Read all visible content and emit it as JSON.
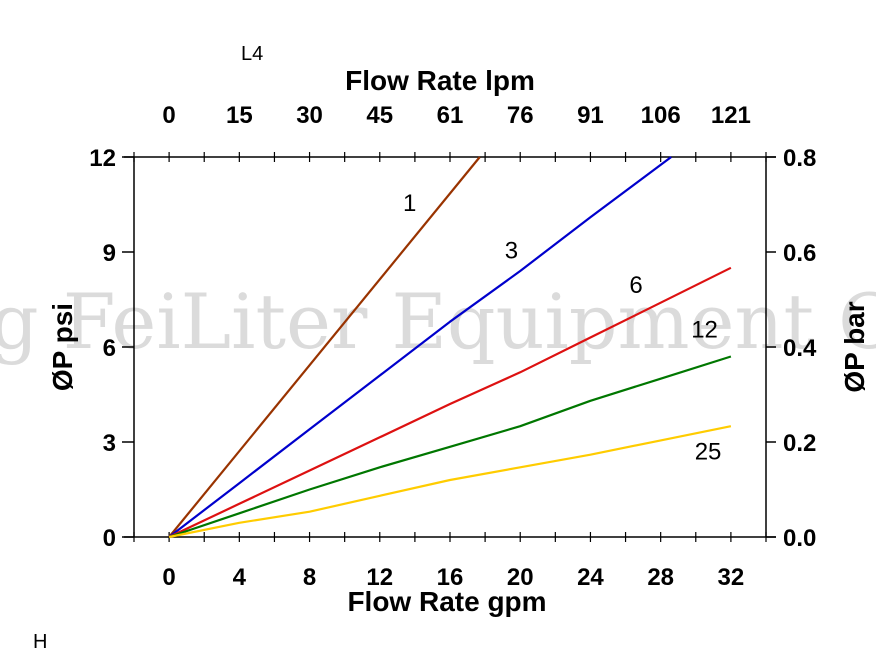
{
  "corner_labels": {
    "top": "L4",
    "bottom": "H"
  },
  "watermark": "g FeiLiter Equipment Co.",
  "chart_data": {
    "type": "line",
    "title": "",
    "xlabel": "Flow Rate gpm",
    "ylabel": "ØP psi",
    "xlabel_top": "Flow Rate lpm",
    "ylabel_right": "ØP bar",
    "xlim": [
      -2,
      34
    ],
    "ylim": [
      0,
      12
    ],
    "x_ticks": [
      "0",
      "4",
      "8",
      "12",
      "16",
      "20",
      "24",
      "28",
      "32"
    ],
    "x_top_ticks": [
      "0",
      "15",
      "30",
      "45",
      "61",
      "76",
      "91",
      "106",
      "121"
    ],
    "y_ticks": [
      "0",
      "3",
      "6",
      "9",
      "12"
    ],
    "y_right_ticks": [
      "0.0",
      "0.2",
      "0.4",
      "0.6",
      "0.8"
    ],
    "grid": false,
    "series": [
      {
        "name": "1",
        "color": "#993300",
        "x": [
          0,
          17.7
        ],
        "y": [
          0,
          12
        ]
      },
      {
        "name": "3",
        "color": "#0000cc",
        "x": [
          0,
          4,
          8,
          12,
          16,
          20,
          24,
          28.6
        ],
        "y": [
          0,
          1.7,
          3.4,
          5.1,
          6.8,
          8.4,
          10.1,
          12
        ]
      },
      {
        "name": "6",
        "color": "#dd1111",
        "x": [
          0,
          4,
          8,
          12,
          16,
          20,
          24,
          28,
          32
        ],
        "y": [
          0,
          1.05,
          2.1,
          3.15,
          4.2,
          5.2,
          6.3,
          7.4,
          8.5
        ]
      },
      {
        "name": "12",
        "color": "#007700",
        "x": [
          0,
          4,
          8,
          12,
          16,
          20,
          24,
          28,
          32
        ],
        "y": [
          0,
          0.75,
          1.5,
          2.2,
          2.85,
          3.5,
          4.3,
          5.0,
          5.7
        ]
      },
      {
        "name": "25",
        "color": "#ffcc00",
        "x": [
          0,
          4,
          8,
          12,
          16,
          20,
          24,
          28,
          32
        ],
        "y": [
          0,
          0.45,
          0.8,
          1.3,
          1.8,
          2.2,
          2.6,
          3.05,
          3.5
        ]
      }
    ],
    "line_labels": [
      {
        "text": "1",
        "x": 13.7,
        "y": 10.3
      },
      {
        "text": "3",
        "x": 19.5,
        "y": 8.8
      },
      {
        "text": "6",
        "x": 26.6,
        "y": 7.7
      },
      {
        "text": "12",
        "x": 30.5,
        "y": 6.3
      },
      {
        "text": "25",
        "x": 30.7,
        "y": 2.45
      }
    ]
  }
}
